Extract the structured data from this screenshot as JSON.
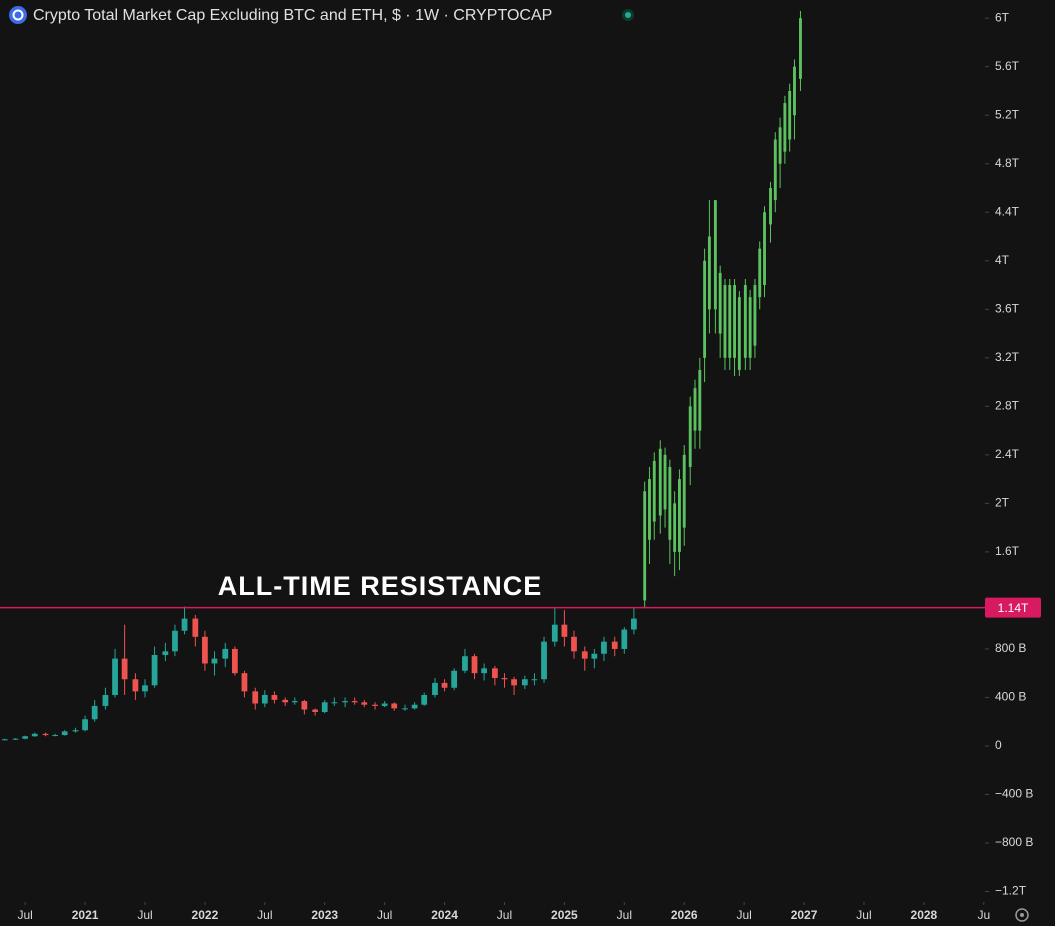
{
  "chart_data": {
    "type": "candlestick",
    "title": "Crypto Total Market Cap Excluding BTC and ETH, $ · 1W · CRYPTOCAP",
    "annotation": "ALL-TIME RESISTANCE",
    "resistance": {
      "value": 1.14,
      "label": "1.14T",
      "color": "#d81b60"
    },
    "background": "#131313",
    "xlim": [
      2020.29,
      2028.51
    ],
    "xticks": [
      {
        "value": 2020.5,
        "label": "Jul"
      },
      2021,
      {
        "value": 2021.5,
        "label": "Jul"
      },
      2022,
      {
        "value": 2022.5,
        "label": "Jul"
      },
      2023,
      {
        "value": 2023.5,
        "label": "Jul"
      },
      2024,
      {
        "value": 2024.5,
        "label": "Jul"
      },
      2025,
      {
        "value": 2025.5,
        "label": "Jul"
      },
      2026,
      {
        "value": 2026.5,
        "label": "Jul"
      },
      2027,
      {
        "value": 2027.5,
        "label": "Jul"
      },
      2028,
      {
        "value": 2028.5,
        "label": "Ju"
      }
    ],
    "ylim": [
      -1.27,
      6.15
    ],
    "yticks": [
      {
        "value": -1.2,
        "label": "−1.2T"
      },
      {
        "value": -0.8,
        "label": "−800 B"
      },
      {
        "value": -0.4,
        "label": "−400 B"
      },
      0,
      {
        "value": 0.4,
        "label": "400 B"
      },
      {
        "value": 0.8,
        "label": "800 B"
      },
      {
        "value": 1.6,
        "label": "1.6T"
      },
      {
        "value": 2,
        "label": "2T"
      },
      {
        "value": 2.4,
        "label": "2.4T"
      },
      {
        "value": 2.8,
        "label": "2.8T"
      },
      {
        "value": 3.2,
        "label": "3.2T"
      },
      {
        "value": 3.6,
        "label": "3.6T"
      },
      {
        "value": 4,
        "label": "4T"
      },
      {
        "value": 4.4,
        "label": "4.4T"
      },
      {
        "value": 4.8,
        "label": "4.8T"
      },
      {
        "value": 5.2,
        "label": "5.2T"
      },
      {
        "value": 5.6,
        "label": "5.6T"
      },
      {
        "value": 6,
        "label": "6T"
      }
    ],
    "series": [
      {
        "up_color": "#26a69a",
        "down_color": "#ef5350",
        "x": [
          2020.33,
          2020.42,
          2020.5,
          2020.58,
          2020.67,
          2020.75,
          2020.83,
          2020.92,
          2021.0,
          2021.08,
          2021.17,
          2021.25,
          2021.33,
          2021.42,
          2021.5,
          2021.58,
          2021.67,
          2021.75,
          2021.83,
          2021.92,
          2022.0,
          2022.08,
          2022.17,
          2022.25,
          2022.33,
          2022.42,
          2022.5,
          2022.58,
          2022.67,
          2022.75,
          2022.83,
          2022.92,
          2023.0,
          2023.08,
          2023.17,
          2023.25,
          2023.33,
          2023.42,
          2023.5,
          2023.58,
          2023.67,
          2023.75,
          2023.83,
          2023.92,
          2024.0,
          2024.08,
          2024.17,
          2024.25,
          2024.33,
          2024.42,
          2024.5,
          2024.58,
          2024.67,
          2024.75,
          2024.83,
          2024.92,
          2025.0,
          2025.08,
          2025.17,
          2025.25,
          2025.33,
          2025.42,
          2025.5,
          2025.58
        ],
        "open": [
          0.05,
          0.055,
          0.06,
          0.08,
          0.1,
          0.09,
          0.09,
          0.12,
          0.13,
          0.22,
          0.33,
          0.42,
          0.72,
          0.55,
          0.45,
          0.5,
          0.75,
          0.78,
          0.95,
          1.05,
          0.9,
          0.68,
          0.72,
          0.8,
          0.6,
          0.45,
          0.35,
          0.42,
          0.38,
          0.36,
          0.37,
          0.3,
          0.28,
          0.36,
          0.36,
          0.37,
          0.36,
          0.34,
          0.33,
          0.35,
          0.31,
          0.31,
          0.34,
          0.42,
          0.52,
          0.48,
          0.62,
          0.74,
          0.6,
          0.64,
          0.56,
          0.55,
          0.5,
          0.55,
          0.55,
          0.86,
          1.0,
          0.9,
          0.78,
          0.72,
          0.76,
          0.86,
          0.8,
          0.96
        ],
        "high": [
          0.06,
          0.065,
          0.085,
          0.11,
          0.11,
          0.1,
          0.13,
          0.15,
          0.25,
          0.38,
          0.48,
          0.8,
          1.0,
          0.6,
          0.55,
          0.82,
          0.85,
          1.0,
          1.15,
          1.08,
          0.95,
          0.78,
          0.85,
          0.82,
          0.62,
          0.48,
          0.46,
          0.45,
          0.4,
          0.4,
          0.38,
          0.31,
          0.38,
          0.4,
          0.4,
          0.4,
          0.38,
          0.36,
          0.37,
          0.36,
          0.34,
          0.36,
          0.44,
          0.56,
          0.55,
          0.64,
          0.8,
          0.76,
          0.68,
          0.66,
          0.6,
          0.57,
          0.58,
          0.6,
          0.9,
          1.14,
          1.12,
          0.95,
          0.82,
          0.8,
          0.9,
          0.9,
          0.98,
          1.14
        ],
        "low": [
          0.045,
          0.05,
          0.055,
          0.075,
          0.08,
          0.08,
          0.085,
          0.11,
          0.12,
          0.2,
          0.3,
          0.4,
          0.42,
          0.38,
          0.4,
          0.48,
          0.7,
          0.74,
          0.92,
          0.82,
          0.62,
          0.58,
          0.65,
          0.58,
          0.4,
          0.3,
          0.32,
          0.35,
          0.33,
          0.34,
          0.26,
          0.25,
          0.27,
          0.33,
          0.32,
          0.34,
          0.32,
          0.3,
          0.32,
          0.29,
          0.29,
          0.3,
          0.33,
          0.4,
          0.45,
          0.46,
          0.6,
          0.55,
          0.54,
          0.5,
          0.48,
          0.42,
          0.47,
          0.5,
          0.52,
          0.82,
          0.82,
          0.72,
          0.62,
          0.64,
          0.7,
          0.74,
          0.76,
          0.92
        ],
        "close": [
          0.055,
          0.06,
          0.08,
          0.1,
          0.09,
          0.09,
          0.12,
          0.13,
          0.22,
          0.33,
          0.42,
          0.72,
          0.55,
          0.45,
          0.5,
          0.75,
          0.78,
          0.95,
          1.05,
          0.9,
          0.68,
          0.72,
          0.8,
          0.6,
          0.45,
          0.35,
          0.42,
          0.38,
          0.36,
          0.37,
          0.3,
          0.28,
          0.36,
          0.36,
          0.37,
          0.36,
          0.34,
          0.33,
          0.35,
          0.31,
          0.31,
          0.34,
          0.42,
          0.52,
          0.48,
          0.62,
          0.74,
          0.6,
          0.64,
          0.56,
          0.55,
          0.5,
          0.55,
          0.55,
          0.86,
          1.0,
          0.9,
          0.78,
          0.72,
          0.76,
          0.86,
          0.8,
          0.96,
          1.05
        ]
      },
      {
        "up_color": "#5cc25f",
        "down_color": "#ef5350",
        "x": [
          2025.67,
          2025.71,
          2025.75,
          2025.8,
          2025.84,
          2025.88,
          2025.92,
          2025.96,
          2026.0,
          2026.05,
          2026.09,
          2026.13,
          2026.17,
          2026.21,
          2026.26,
          2026.3,
          2026.34,
          2026.38,
          2026.42,
          2026.46,
          2026.51,
          2026.55,
          2026.59,
          2026.63,
          2026.67,
          2026.72,
          2026.76,
          2026.8,
          2026.84,
          2026.88,
          2026.92,
          2026.97
        ],
        "open": [
          1.2,
          1.7,
          1.85,
          1.9,
          1.95,
          1.7,
          1.6,
          1.6,
          1.8,
          2.3,
          2.6,
          2.6,
          3.2,
          3.6,
          3.6,
          3.4,
          3.2,
          3.2,
          3.2,
          3.1,
          3.2,
          3.2,
          3.3,
          3.7,
          3.8,
          4.3,
          4.5,
          4.8,
          4.9,
          5.0,
          5.2,
          5.5
        ],
        "high": [
          2.18,
          2.3,
          2.42,
          2.52,
          2.46,
          2.36,
          2.1,
          2.28,
          2.48,
          2.88,
          3.02,
          3.2,
          4.1,
          4.5,
          4.5,
          3.96,
          3.85,
          3.85,
          3.85,
          3.75,
          3.85,
          3.76,
          3.85,
          4.16,
          4.45,
          4.65,
          5.06,
          5.18,
          5.36,
          5.46,
          5.66,
          6.06
        ],
        "low": [
          1.14,
          1.5,
          1.7,
          1.75,
          1.8,
          1.5,
          1.4,
          1.45,
          1.65,
          2.15,
          2.45,
          2.45,
          3.0,
          3.4,
          3.4,
          3.2,
          3.1,
          3.1,
          3.05,
          3.05,
          3.1,
          3.1,
          3.2,
          3.6,
          3.7,
          4.15,
          4.4,
          4.6,
          4.8,
          4.9,
          5.0,
          5.4
        ],
        "close": [
          2.1,
          2.2,
          2.35,
          2.45,
          2.4,
          2.3,
          2.0,
          2.2,
          2.4,
          2.8,
          2.95,
          3.1,
          4.0,
          4.2,
          4.5,
          3.9,
          3.8,
          3.8,
          3.8,
          3.7,
          3.8,
          3.7,
          3.8,
          4.1,
          4.4,
          4.6,
          5.0,
          5.1,
          5.3,
          5.4,
          5.6,
          6.0
        ]
      }
    ]
  }
}
